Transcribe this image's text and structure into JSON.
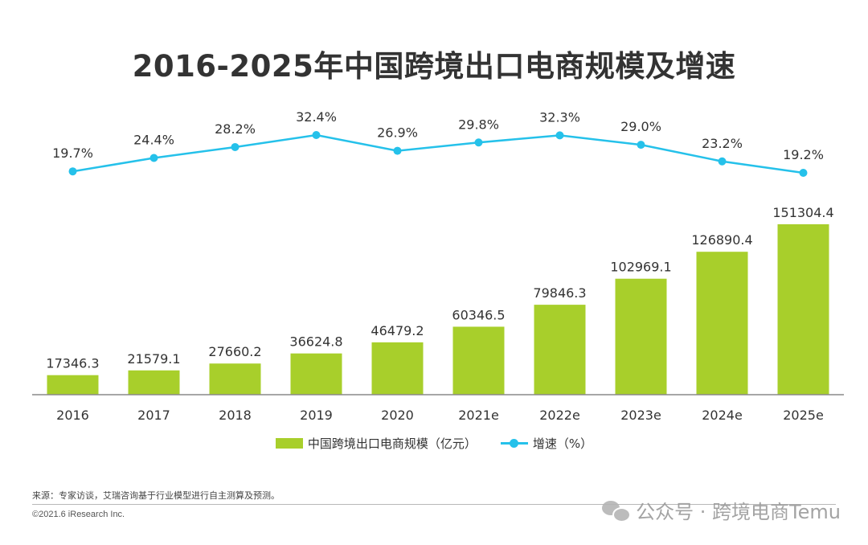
{
  "title": "2016-2025年中国跨境出口电商规模及增速",
  "chart_data": {
    "type": "bar",
    "categories": [
      "2016",
      "2017",
      "2018",
      "2019",
      "2020",
      "2021e",
      "2022e",
      "2023e",
      "2024e",
      "2025e"
    ],
    "series": [
      {
        "name": "中国跨境出口电商规模（亿元）",
        "type": "bar",
        "values": [
          17346.3,
          21579.1,
          27660.2,
          36624.8,
          46479.2,
          60346.5,
          79846.3,
          102969.1,
          126890.4,
          151304.4
        ],
        "labels": [
          "17346.3",
          "21579.1",
          "27660.2",
          "36624.8",
          "46479.2",
          "60346.5",
          "79846.3",
          "102969.1",
          "126890.4",
          "151304.4"
        ],
        "color": "#a8cf2b"
      },
      {
        "name": "增速（%）",
        "type": "line",
        "values": [
          19.7,
          24.4,
          28.2,
          32.4,
          26.9,
          29.8,
          32.3,
          29.0,
          23.2,
          19.2
        ],
        "labels": [
          "19.7%",
          "24.4%",
          "28.2%",
          "32.4%",
          "26.9%",
          "29.8%",
          "32.3%",
          "29.0%",
          "23.2%",
          "19.2%"
        ],
        "color": "#25c1ea"
      }
    ],
    "legend_position": "bottom",
    "grid": false
  },
  "legend": {
    "bar_label": "中国跨境出口电商规模（亿元）",
    "line_label": "增速（%）"
  },
  "footer": {
    "source": "来源：专家访谈，艾瑞咨询基于行业模型进行自主测算及预测。",
    "copyright": "©2021.6 iResearch Inc.",
    "watermark": "公众号 · 跨境电商Temu"
  }
}
